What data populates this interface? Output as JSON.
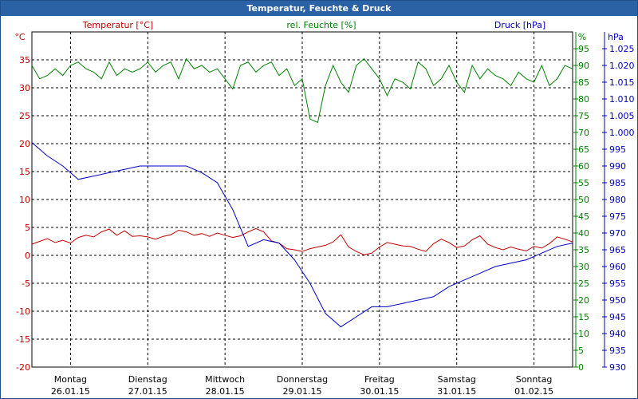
{
  "colors": {
    "titlebar": "#2a62a5",
    "temperature": "#c00000",
    "humidity": "#008000",
    "pressure": "#0000c0",
    "grid": "#000000"
  },
  "chart_data": {
    "type": "line",
    "title": "Temperatur, Feuchte & Druck",
    "grid": true,
    "x": {
      "range": [
        0,
        7
      ],
      "ticks": [
        {
          "day": "Montag",
          "date": "26.01.15"
        },
        {
          "day": "Dienstag",
          "date": "27.01.15"
        },
        {
          "day": "Mittwoch",
          "date": "28.01.15"
        },
        {
          "day": "Donnerstag",
          "date": "29.01.15"
        },
        {
          "day": "Freitag",
          "date": "30.01.15"
        },
        {
          "day": "Samstag",
          "date": "31.01.15"
        },
        {
          "day": "Sonntag",
          "date": "01.02.15"
        }
      ]
    },
    "axes": {
      "temperature": {
        "label": "Temperatur [°C]",
        "unit": "°C",
        "range": [
          -20,
          40
        ],
        "ticks": [
          "-20",
          "-15",
          "-10",
          "-5",
          "0",
          "5",
          "10",
          "15",
          "20",
          "25",
          "30",
          "35"
        ]
      },
      "humidity": {
        "label": "rel. Feuchte [%]",
        "unit": "%",
        "range": [
          0,
          100
        ],
        "ticks": [
          "0",
          "5",
          "10",
          "15",
          "20",
          "25",
          "30",
          "35",
          "40",
          "45",
          "50",
          "55",
          "60",
          "65",
          "70",
          "75",
          "80",
          "85",
          "90",
          "95"
        ]
      },
      "pressure": {
        "label": "Druck [hPa]",
        "unit": "hPa",
        "range": [
          930,
          1030
        ],
        "ticks": [
          "930",
          "935",
          "940",
          "945",
          "950",
          "955",
          "960",
          "965",
          "970",
          "975",
          "980",
          "985",
          "990",
          "995",
          "1.000",
          "1.005",
          "1.010",
          "1.015",
          "1.020",
          "1.025"
        ]
      }
    },
    "series": [
      {
        "name": "Temperatur [°C]",
        "axis": "temperature",
        "x": [
          0,
          0.1,
          0.2,
          0.3,
          0.4,
          0.5,
          0.6,
          0.7,
          0.8,
          0.9,
          1.0,
          1.1,
          1.2,
          1.3,
          1.4,
          1.5,
          1.6,
          1.7,
          1.8,
          1.9,
          2.0,
          2.1,
          2.2,
          2.3,
          2.4,
          2.5,
          2.6,
          2.7,
          2.8,
          2.9,
          3.0,
          3.1,
          3.2,
          3.3,
          3.4,
          3.5,
          3.6,
          3.7,
          3.8,
          3.9,
          4.0,
          4.1,
          4.2,
          4.3,
          4.4,
          4.5,
          4.6,
          4.7,
          4.8,
          4.9,
          5.0,
          5.1,
          5.2,
          5.3,
          5.4,
          5.5,
          5.6,
          5.7,
          5.8,
          5.9,
          6.0,
          6.1,
          6.2,
          6.3,
          6.4,
          6.5,
          6.6,
          6.7,
          6.8,
          6.9,
          7.0
        ],
        "values": [
          2,
          2.5,
          3,
          2.3,
          2.7,
          2.2,
          3.2,
          3.6,
          3.3,
          4.2,
          4.7,
          3.6,
          4.4,
          3.4,
          3.5,
          3.3,
          2.9,
          3.4,
          3.7,
          4.5,
          4.2,
          3.6,
          3.9,
          3.4,
          4.0,
          3.6,
          3.2,
          3.5,
          4.2,
          4.8,
          4.2,
          2.6,
          2.2,
          1.2,
          1.0,
          0.7,
          1.2,
          1.5,
          1.8,
          2.4,
          3.7,
          1.5,
          0.7,
          0.1,
          0.4,
          1.5,
          2.3,
          2.0,
          1.7,
          1.6,
          1.1,
          0.7,
          2.1,
          2.9,
          2.3,
          1.4,
          1.7,
          2.8,
          3.5,
          2.0,
          1.4,
          1.0,
          1.5,
          1.1,
          0.8,
          1.6,
          1.3,
          2.1,
          3.3,
          2.9,
          2.4
        ]
      },
      {
        "name": "rel. Feuchte [%]",
        "axis": "humidity",
        "x": [
          0,
          0.1,
          0.2,
          0.3,
          0.4,
          0.5,
          0.6,
          0.7,
          0.8,
          0.9,
          1.0,
          1.1,
          1.2,
          1.3,
          1.4,
          1.5,
          1.6,
          1.7,
          1.8,
          1.9,
          2.0,
          2.1,
          2.2,
          2.3,
          2.4,
          2.5,
          2.6,
          2.7,
          2.8,
          2.9,
          3.0,
          3.1,
          3.2,
          3.3,
          3.4,
          3.5,
          3.6,
          3.7,
          3.8,
          3.9,
          4.0,
          4.1,
          4.2,
          4.3,
          4.4,
          4.5,
          4.6,
          4.7,
          4.8,
          4.9,
          5.0,
          5.1,
          5.2,
          5.3,
          5.4,
          5.5,
          5.6,
          5.7,
          5.8,
          5.9,
          6.0,
          6.1,
          6.2,
          6.3,
          6.4,
          6.5,
          6.6,
          6.7,
          6.8,
          6.9,
          7.0
        ],
        "values": [
          90,
          86,
          87,
          89,
          87,
          90,
          91,
          89,
          88,
          86,
          91,
          87,
          89,
          88,
          89,
          91,
          88,
          90,
          91,
          86,
          92,
          89,
          90,
          88,
          89,
          86,
          83,
          90,
          91,
          88,
          90,
          91,
          87,
          89,
          84,
          86,
          74,
          73,
          84,
          90,
          85,
          82,
          90,
          92,
          89,
          86,
          81,
          86,
          85,
          83,
          91,
          89,
          84,
          86,
          90,
          85,
          82,
          90,
          86,
          89,
          87,
          86,
          84,
          88,
          86,
          85,
          90,
          84,
          86,
          90,
          89
        ]
      },
      {
        "name": "Druck [hPa]",
        "axis": "pressure",
        "x": [
          0,
          0.2,
          0.4,
          0.6,
          0.8,
          1.0,
          1.2,
          1.4,
          1.6,
          1.8,
          2.0,
          2.2,
          2.4,
          2.6,
          2.8,
          3.0,
          3.2,
          3.4,
          3.6,
          3.8,
          4.0,
          4.2,
          4.4,
          4.6,
          4.8,
          5.0,
          5.2,
          5.4,
          5.6,
          5.8,
          6.0,
          6.2,
          6.4,
          6.6,
          6.8,
          7.0
        ],
        "values": [
          997,
          993,
          990,
          986,
          987,
          988,
          989,
          990,
          990,
          990,
          990,
          988,
          985,
          977,
          966,
          968,
          967,
          962,
          955,
          946,
          942,
          945,
          948,
          948,
          949,
          950,
          951,
          954,
          956,
          958,
          960,
          961,
          962,
          964,
          966,
          967
        ]
      }
    ]
  }
}
